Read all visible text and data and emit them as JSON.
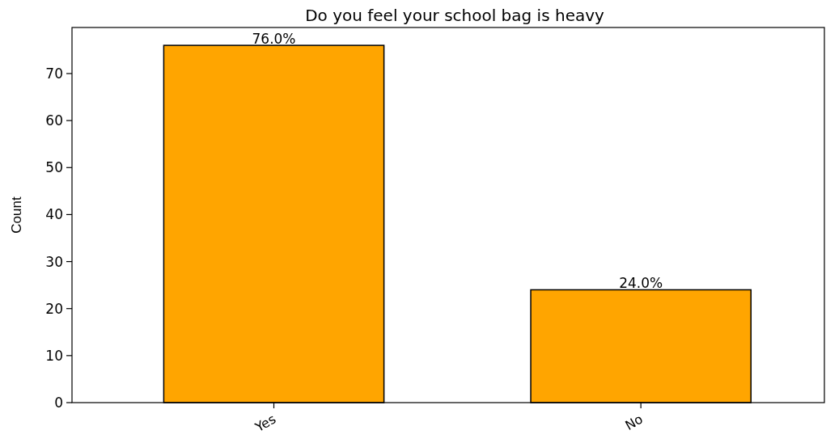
{
  "chart_data": {
    "type": "bar",
    "title": "Do you feel your school bag is heavy",
    "ylabel": "Count",
    "categories": [
      "Yes",
      "No"
    ],
    "values": [
      76,
      24
    ],
    "color": "#ffa500",
    "value_labels": [
      "76.0%",
      "24.0%"
    ],
    "ylim": [
      0,
      79.8
    ],
    "yticks": [
      0,
      10,
      20,
      30,
      40,
      50,
      60,
      70
    ],
    "grid": false
  }
}
